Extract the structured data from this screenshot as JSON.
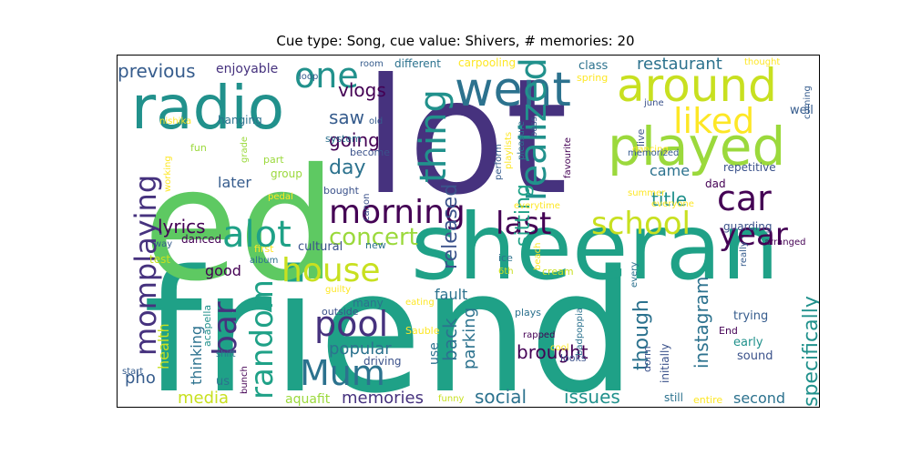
{
  "title": "Cue type: Song, cue value: Shivers, # memories: 20",
  "colors": {
    "dark_purple": "#440154",
    "indigo": "#46327e",
    "blue": "#365c8d",
    "steel_blue": "#3b528b",
    "teal_blue": "#2c728e",
    "teal": "#21918c",
    "sea_green": "#1fa187",
    "green": "#3bbb75",
    "light_green": "#5ec962",
    "lime": "#9bd93c",
    "yellow_green": "#c8e020",
    "yellow": "#fde725"
  },
  "words": [
    {
      "text": "friend"
    },
    {
      "text": "lot"
    },
    {
      "text": "ed"
    },
    {
      "text": "sheeran"
    },
    {
      "text": "radio"
    },
    {
      "text": "went"
    },
    {
      "text": "around"
    },
    {
      "text": "played"
    },
    {
      "text": "one"
    },
    {
      "text": "liked"
    },
    {
      "text": "thing"
    },
    {
      "text": "realized"
    },
    {
      "text": "car"
    },
    {
      "text": "morning"
    },
    {
      "text": "last"
    },
    {
      "text": "school"
    },
    {
      "text": "year"
    },
    {
      "text": "alot"
    },
    {
      "text": "momplaying"
    },
    {
      "text": "house"
    },
    {
      "text": "bar"
    },
    {
      "text": "random"
    },
    {
      "text": "pool"
    },
    {
      "text": "Mum"
    },
    {
      "text": "concert"
    },
    {
      "text": "previous"
    },
    {
      "text": "enjoyable"
    },
    {
      "text": "vlogs"
    },
    {
      "text": "saw"
    },
    {
      "text": "going"
    },
    {
      "text": "day"
    },
    {
      "text": "later"
    },
    {
      "text": "lyrics"
    },
    {
      "text": "released"
    },
    {
      "text": "sitting"
    },
    {
      "text": "title"
    },
    {
      "text": "came"
    },
    {
      "text": "restaurant"
    },
    {
      "text": "class"
    },
    {
      "text": "different"
    },
    {
      "text": "carpooling"
    },
    {
      "text": "room"
    },
    {
      "text": "loop"
    },
    {
      "text": "spring"
    },
    {
      "text": "thought"
    },
    {
      "text": "coming"
    },
    {
      "text": "well"
    },
    {
      "text": "june"
    },
    {
      "text": "dancing"
    },
    {
      "text": "memorized"
    },
    {
      "text": "repetitive"
    },
    {
      "text": "dad"
    },
    {
      "text": "everyone"
    },
    {
      "text": "guarding"
    },
    {
      "text": "arranged"
    },
    {
      "text": "summer"
    },
    {
      "text": "everytime"
    },
    {
      "text": "favourite"
    },
    {
      "text": "live"
    },
    {
      "text": "pleasure"
    },
    {
      "text": "playlists"
    },
    {
      "text": "perform"
    },
    {
      "text": "bass"
    },
    {
      "text": "canon"
    },
    {
      "text": "bought"
    },
    {
      "text": "become"
    },
    {
      "text": "system"
    },
    {
      "text": "old"
    },
    {
      "text": "hanging"
    },
    {
      "text": "nishika"
    },
    {
      "text": "fun"
    },
    {
      "text": "grade"
    },
    {
      "text": "part"
    },
    {
      "text": "group"
    },
    {
      "text": "pedal"
    },
    {
      "text": "working"
    },
    {
      "text": "danced"
    },
    {
      "text": "way"
    },
    {
      "text": "first"
    },
    {
      "text": "album"
    },
    {
      "text": "test"
    },
    {
      "text": "cultural"
    },
    {
      "text": "new"
    },
    {
      "text": "eating"
    },
    {
      "text": "ice"
    },
    {
      "text": "6th"
    },
    {
      "text": "beach"
    },
    {
      "text": "cream"
    },
    {
      "text": "every"
    },
    {
      "text": "really"
    },
    {
      "text": "good"
    },
    {
      "text": "health"
    },
    {
      "text": "thinking"
    },
    {
      "text": "fault"
    },
    {
      "text": "parking"
    },
    {
      "text": "back"
    },
    {
      "text": "use"
    },
    {
      "text": "popular"
    },
    {
      "text": "brought"
    },
    {
      "text": "though"
    },
    {
      "text": "instagram"
    },
    {
      "text": "specifically"
    },
    {
      "text": "guilty"
    },
    {
      "text": "many"
    },
    {
      "text": "outside"
    },
    {
      "text": "acapella"
    },
    {
      "text": "shift"
    },
    {
      "text": "driving"
    },
    {
      "text": "Sauble"
    },
    {
      "text": "plays"
    },
    {
      "text": "badpoppia"
    },
    {
      "text": "rapped"
    },
    {
      "text": "cool"
    },
    {
      "text": "looks"
    },
    {
      "text": "dorm"
    },
    {
      "text": "initially"
    },
    {
      "text": "trying"
    },
    {
      "text": "End"
    },
    {
      "text": "early"
    },
    {
      "text": "sound"
    },
    {
      "text": "pho"
    },
    {
      "text": "start"
    },
    {
      "text": "us"
    },
    {
      "text": "bunch"
    },
    {
      "text": "media"
    },
    {
      "text": "aquafit"
    },
    {
      "text": "memories"
    },
    {
      "text": "funny"
    },
    {
      "text": "social"
    },
    {
      "text": "issues"
    },
    {
      "text": "still"
    },
    {
      "text": "entire"
    },
    {
      "text": "second"
    }
  ]
}
